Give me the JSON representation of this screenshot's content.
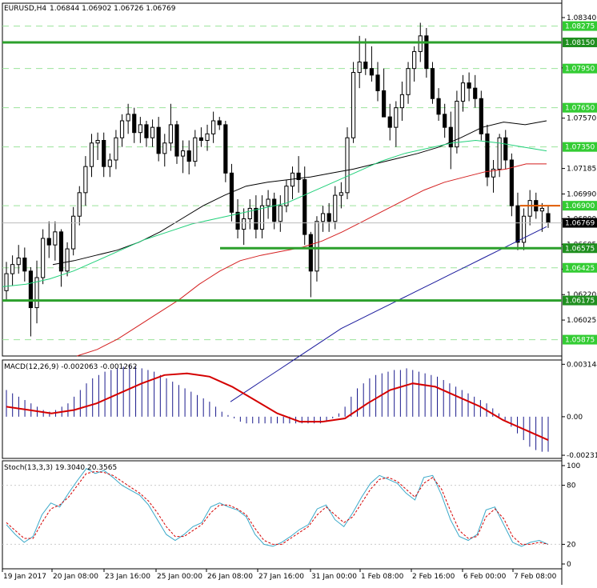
{
  "header": {
    "symbol": "EURUSD,H4",
    "ohlc": "1.06844 1.06902 1.06726 1.06769"
  },
  "colors": {
    "bull_body": "#ffffff",
    "bear_body": "#000000",
    "candle_outline": "#000000",
    "level_line": "#2ca02c",
    "level_tag_bg": "#33cc33",
    "level_tag_text": "#ffffff",
    "dashed_level": "#9be39b",
    "ma_fast": "#000000",
    "ma_mid": "#21d07a",
    "ma_slow": "#d41f1f",
    "ma_long": "#1a1a9c",
    "price_line": "#e05a00",
    "macd_hist": "#1a1a8c",
    "macd_signal": "#d40000",
    "stoch_main": "#3aa9c9",
    "stoch_signal": "#d40000",
    "grid": "#000000"
  },
  "chart_data": [
    {
      "type": "candlestick",
      "title": "EURUSD,H4",
      "y_axis_ticks": [
        "1.08340",
        "1.07955",
        "1.07570",
        "1.07185",
        "1.06990",
        "1.06800",
        "1.06605",
        "1.06415",
        "1.06220",
        "1.06025"
      ],
      "y_axis_tick_values": [
        1.0834,
        1.07955,
        1.0757,
        1.07185,
        1.0699,
        1.068,
        1.06605,
        1.06415,
        1.0622,
        1.06025
      ],
      "ylim": [
        1.0575,
        1.0845
      ],
      "key_levels": [
        1.0815,
        1.06575,
        1.06175
      ],
      "key_level_labels": [
        "1.08150",
        "1.06575",
        "1.06175"
      ],
      "dashed_levels": [
        1.08275,
        1.0795,
        1.0765,
        1.0735,
        1.069,
        1.06425,
        1.05875
      ],
      "dashed_level_labels": [
        "1.08275",
        "1.07950",
        "1.07650",
        "1.07350",
        "1.06900",
        "1.06425",
        "1.05875"
      ],
      "current_price": 1.06769,
      "current_price_label": "1.06769",
      "x_labels": [
        "19 Jan 2017",
        "20 Jan 08:00",
        "23 Jan 16:00",
        "25 Jan 00:00",
        "26 Jan 08:00",
        "27 Jan 16:00",
        "31 Jan 00:00",
        "1 Feb 08:00",
        "2 Feb 16:00",
        "6 Feb 00:00",
        "7 Feb 08:00"
      ],
      "candles": [
        [
          1.0625,
          1.0647,
          1.0618,
          1.0638
        ],
        [
          1.0638,
          1.0652,
          1.0629,
          1.0645
        ],
        [
          1.0645,
          1.066,
          1.0638,
          1.065
        ],
        [
          1.065,
          1.0658,
          1.0632,
          1.064
        ],
        [
          1.064,
          1.0643,
          1.059,
          1.0612
        ],
        [
          1.0612,
          1.0648,
          1.06,
          1.0635
        ],
        [
          1.0635,
          1.0672,
          1.063,
          1.0665
        ],
        [
          1.0665,
          1.0678,
          1.065,
          1.066
        ],
        [
          1.066,
          1.0678,
          1.0648,
          1.067
        ],
        [
          1.067,
          1.0672,
          1.0628,
          1.064
        ],
        [
          1.064,
          1.0662,
          1.0636,
          1.0657
        ],
        [
          1.0657,
          1.0689,
          1.0652,
          1.0682
        ],
        [
          1.0682,
          1.0705,
          1.0675,
          1.07
        ],
        [
          1.07,
          1.0728,
          1.069,
          1.072
        ],
        [
          1.072,
          1.0745,
          1.0712,
          1.0738
        ],
        [
          1.0738,
          1.0746,
          1.0725,
          1.074
        ],
        [
          1.074,
          1.0746,
          1.0712,
          1.072
        ],
        [
          1.072,
          1.073,
          1.0712,
          1.0725
        ],
        [
          1.0725,
          1.0748,
          1.0718,
          1.0742
        ],
        [
          1.0742,
          1.076,
          1.0735,
          1.0755
        ],
        [
          1.0755,
          1.0768,
          1.0745,
          1.076
        ],
        [
          1.076,
          1.0765,
          1.0738,
          1.0746
        ],
        [
          1.0746,
          1.0758,
          1.0738,
          1.0752
        ],
        [
          1.0752,
          1.0755,
          1.0735,
          1.0742
        ],
        [
          1.0742,
          1.0756,
          1.0735,
          1.075
        ],
        [
          1.075,
          1.0758,
          1.0724,
          1.073
        ],
        [
          1.073,
          1.0745,
          1.072,
          1.0738
        ],
        [
          1.0738,
          1.0768,
          1.0732,
          1.0752
        ],
        [
          1.0752,
          1.0755,
          1.0722,
          1.0728
        ],
        [
          1.0728,
          1.074,
          1.0715,
          1.0732
        ],
        [
          1.0732,
          1.074,
          1.0714,
          1.0724
        ],
        [
          1.0724,
          1.0748,
          1.072,
          1.0742
        ],
        [
          1.0742,
          1.075,
          1.0735,
          1.074
        ],
        [
          1.074,
          1.0752,
          1.0732,
          1.0745
        ],
        [
          1.0745,
          1.0762,
          1.0738,
          1.0755
        ],
        [
          1.0755,
          1.0758,
          1.0748,
          1.0752
        ],
        [
          1.0752,
          1.0755,
          1.0708,
          1.0715
        ],
        [
          1.0715,
          1.0722,
          1.0678,
          1.0685
        ],
        [
          1.0685,
          1.0695,
          1.0665,
          1.0672
        ],
        [
          1.0672,
          1.0688,
          1.066,
          1.068
        ],
        [
          1.068,
          1.0695,
          1.0672,
          1.0688
        ],
        [
          1.0688,
          1.0698,
          1.0665,
          1.0672
        ],
        [
          1.0672,
          1.0698,
          1.0665,
          1.069
        ],
        [
          1.069,
          1.0702,
          1.068,
          1.0695
        ],
        [
          1.0695,
          1.07,
          1.0672,
          1.0678
        ],
        [
          1.0678,
          1.0698,
          1.067,
          1.069
        ],
        [
          1.069,
          1.071,
          1.0685,
          1.0705
        ],
        [
          1.0705,
          1.072,
          1.0695,
          1.0715
        ],
        [
          1.0715,
          1.0728,
          1.07,
          1.071
        ],
        [
          1.071,
          1.072,
          1.066,
          1.0668
        ],
        [
          1.0668,
          1.067,
          1.062,
          1.064
        ],
        [
          1.064,
          1.0682,
          1.0632,
          1.0678
        ],
        [
          1.0678,
          1.069,
          1.067,
          1.0684
        ],
        [
          1.0684,
          1.0692,
          1.067,
          1.0678
        ],
        [
          1.0678,
          1.0705,
          1.0672,
          1.0698
        ],
        [
          1.0698,
          1.0708,
          1.0688,
          1.07
        ],
        [
          1.07,
          1.075,
          1.0695,
          1.0742
        ],
        [
          1.0742,
          1.08,
          1.0738,
          1.0792
        ],
        [
          1.0792,
          1.082,
          1.078,
          1.08
        ],
        [
          1.08,
          1.0818,
          1.079,
          1.0795
        ],
        [
          1.0795,
          1.0812,
          1.0785,
          1.079
        ],
        [
          1.079,
          1.08,
          1.077,
          1.0778
        ],
        [
          1.0778,
          1.0795,
          1.076,
          1.0758
        ],
        [
          1.0758,
          1.0768,
          1.074,
          1.075
        ],
        [
          1.075,
          1.077,
          1.0735,
          1.0765
        ],
        [
          1.0765,
          1.0785,
          1.0755,
          1.0775
        ],
        [
          1.0775,
          1.08,
          1.0768,
          1.0795
        ],
        [
          1.0795,
          1.0812,
          1.0785,
          1.0808
        ],
        [
          1.0808,
          1.083,
          1.08,
          1.082
        ],
        [
          1.082,
          1.0826,
          1.0788,
          1.0795
        ],
        [
          1.0795,
          1.08,
          1.0768,
          1.0772
        ],
        [
          1.0772,
          1.078,
          1.0755,
          1.076
        ],
        [
          1.076,
          1.0768,
          1.0742,
          1.075
        ],
        [
          1.075,
          1.0762,
          1.0718,
          1.0735
        ],
        [
          1.0735,
          1.0778,
          1.073,
          1.077
        ],
        [
          1.077,
          1.079,
          1.0762,
          1.0784
        ],
        [
          1.0784,
          1.0792,
          1.077,
          1.078
        ],
        [
          1.078,
          1.079,
          1.0765,
          1.0772
        ],
        [
          1.0772,
          1.0778,
          1.074,
          1.0745
        ],
        [
          1.0745,
          1.0752,
          1.0705,
          1.0712
        ],
        [
          1.0712,
          1.0725,
          1.07,
          1.0718
        ],
        [
          1.0718,
          1.0745,
          1.0712,
          1.0742
        ],
        [
          1.0742,
          1.0748,
          1.0718,
          1.0725
        ],
        [
          1.0725,
          1.073,
          1.0682,
          1.069
        ],
        [
          1.069,
          1.07,
          1.0656,
          1.0662
        ],
        [
          1.0662,
          1.0688,
          1.0656,
          1.0682
        ],
        [
          1.0682,
          1.0702,
          1.0675,
          1.0694
        ],
        [
          1.0694,
          1.07,
          1.068,
          1.0686
        ],
        [
          1.0686,
          1.0692,
          1.067,
          1.0688
        ],
        [
          1.0684,
          1.069,
          1.0673,
          1.0677
        ]
      ],
      "moving_averages": [
        {
          "values": [
            1.0645,
            1.0648,
            1.0652,
            1.0656,
            1.0662,
            1.067,
            1.068,
            1.069,
            1.0698,
            1.0705,
            1.0708,
            1.071,
            1.0712,
            1.0715,
            1.0718,
            1.0722,
            1.0726,
            1.073,
            1.0735,
            1.0742,
            1.075,
            1.0754,
            1.0752,
            1.0755
          ]
        },
        {
          "values": [
            1.0628,
            1.063,
            1.0634,
            1.064,
            1.0648,
            1.0656,
            1.0664,
            1.067,
            1.0676,
            1.068,
            1.0684,
            1.0688,
            1.0692,
            1.07,
            1.0708,
            1.0716,
            1.0724,
            1.073,
            1.0734,
            1.0738,
            1.074,
            1.0738,
            1.0735,
            1.0732
          ]
        },
        {
          "values": [
            1.0575,
            1.058,
            1.0588,
            1.0598,
            1.0608,
            1.0618,
            1.063,
            1.064,
            1.0648,
            1.0652,
            1.0655,
            1.0658,
            1.0663,
            1.067,
            1.0678,
            1.0686,
            1.0694,
            1.0702,
            1.0708,
            1.0712,
            1.0716,
            1.0718,
            1.0722,
            1.0722
          ]
        },
        {
          "values": [
            1.054,
            1.0548,
            1.0556,
            1.0564,
            1.0572,
            1.058,
            1.0588,
            1.0596,
            1.0602,
            1.0608,
            1.0614,
            1.062,
            1.0626,
            1.0632,
            1.0638,
            1.0644,
            1.065,
            1.0656,
            1.0662,
            1.0668,
            1.0674
          ]
        }
      ]
    },
    {
      "type": "bar",
      "title": "MACD(12,26,9) -0.002063 -0.001262",
      "y_axis_ticks": [
        "0.003144",
        "0.00",
        "-0.002311"
      ],
      "y_axis_tick_values": [
        0.003144,
        0.0,
        -0.002311
      ],
      "ylim": [
        -0.0025,
        0.0034
      ],
      "histogram": [
        0.0016,
        0.0014,
        0.0012,
        0.001,
        0.0008,
        0.0006,
        0.0004,
        0.0003,
        0.0004,
        0.0006,
        0.0008,
        0.0012,
        0.0016,
        0.002,
        0.0023,
        0.0025,
        0.0027,
        0.0028,
        0.0029,
        0.003,
        0.0031,
        0.003,
        0.0029,
        0.0028,
        0.0027,
        0.0025,
        0.0023,
        0.0021,
        0.0019,
        0.0017,
        0.0015,
        0.0013,
        0.0011,
        0.0009,
        0.0006,
        0.0003,
        0.0001,
        -0.0001,
        -0.0003,
        -0.0004,
        -0.0004,
        -0.0004,
        -0.0004,
        -0.0004,
        -0.0004,
        -0.0004,
        -0.0004,
        -0.0004,
        -0.0004,
        -0.0004,
        -0.0004,
        -0.0004,
        -0.0003,
        -0.0001,
        0.0002,
        0.0006,
        0.0012,
        0.0017,
        0.002,
        0.0023,
        0.0025,
        0.0026,
        0.0027,
        0.0028,
        0.0028,
        0.0029,
        0.0028,
        0.0027,
        0.0026,
        0.0025,
        0.0024,
        0.0022,
        0.002,
        0.0018,
        0.0016,
        0.0014,
        0.0012,
        0.001,
        0.0008,
        0.0005,
        0.0002,
        -0.0002,
        -0.0006,
        -0.001,
        -0.0014,
        -0.0018,
        -0.002,
        -0.0021,
        -0.0021
      ],
      "signal": [
        0.0006,
        0.0004,
        0.0002,
        0.0004,
        0.0008,
        0.0014,
        0.002,
        0.0025,
        0.0026,
        0.0024,
        0.0018,
        0.001,
        0.0002,
        -0.0003,
        -0.0003,
        -0.0001,
        0.0008,
        0.0016,
        0.002,
        0.0018,
        0.0012,
        0.0006,
        -0.0002,
        -0.0008,
        -0.0014
      ]
    },
    {
      "type": "line",
      "title": "Stoch(13,3,3) 19.3040 20.3565",
      "y_axis_ticks": [
        "100",
        "80",
        "20",
        "0"
      ],
      "y_axis_tick_values": [
        100,
        80,
        20,
        0
      ],
      "ylim": [
        0,
        100
      ],
      "main": [
        40,
        30,
        22,
        28,
        50,
        62,
        58,
        72,
        85,
        97,
        92,
        95,
        88,
        80,
        75,
        70,
        60,
        45,
        30,
        24,
        30,
        38,
        42,
        58,
        62,
        58,
        55,
        48,
        30,
        20,
        18,
        22,
        28,
        35,
        40,
        56,
        60,
        45,
        38,
        52,
        68,
        82,
        90,
        86,
        82,
        72,
        65,
        88,
        90,
        70,
        45,
        28,
        24,
        30,
        55,
        58,
        40,
        22,
        18,
        22,
        24,
        20
      ],
      "signal": [
        42,
        34,
        26,
        26,
        42,
        56,
        60,
        68,
        80,
        92,
        94,
        93,
        90,
        84,
        78,
        72,
        64,
        52,
        38,
        28,
        28,
        34,
        40,
        52,
        60,
        60,
        56,
        50,
        36,
        24,
        20,
        20,
        26,
        32,
        38,
        50,
        58,
        50,
        42,
        48,
        62,
        76,
        86,
        88,
        84,
        76,
        68,
        82,
        88,
        76,
        54,
        34,
        26,
        28,
        48,
        56,
        46,
        28,
        20,
        20,
        22,
        20
      ]
    }
  ]
}
